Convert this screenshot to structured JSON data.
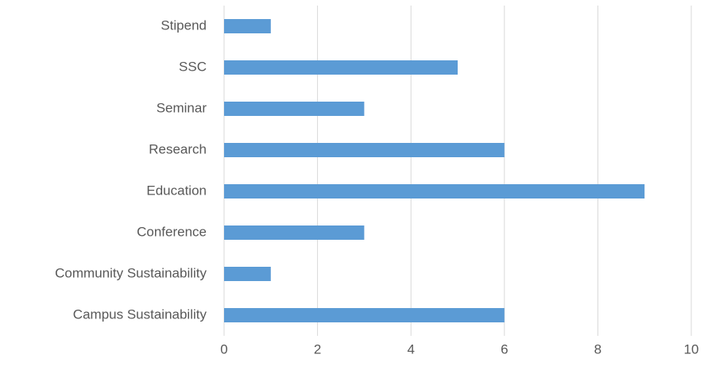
{
  "chart_data": {
    "type": "bar",
    "orientation": "horizontal",
    "categories": [
      "Stipend",
      "SSC",
      "Seminar",
      "Research",
      "Education",
      "Conference",
      "Community Sustainability",
      "Campus Sustainability"
    ],
    "values": [
      1,
      5,
      3,
      6,
      9,
      3,
      1,
      6
    ],
    "color": "#5b9bd5",
    "xlim": [
      0,
      10
    ],
    "xticks": [
      0,
      2,
      4,
      6,
      8,
      10
    ],
    "grid": true
  }
}
